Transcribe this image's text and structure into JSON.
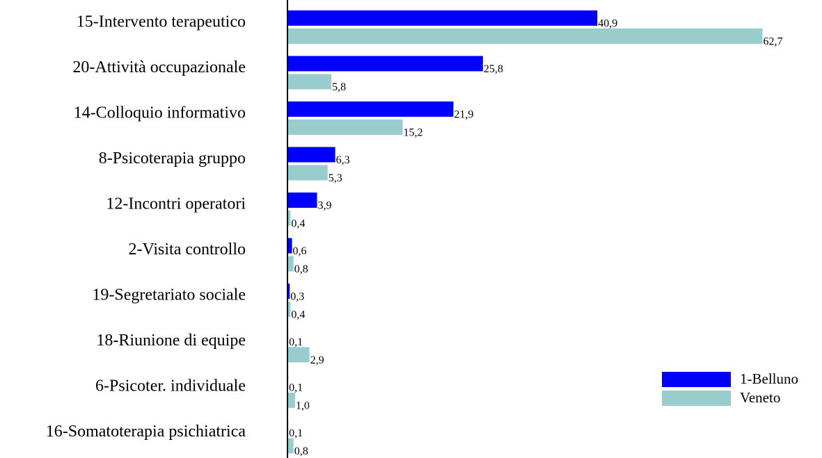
{
  "chart_data": {
    "type": "bar",
    "orientation": "horizontal",
    "categories": [
      "15-Intervento terapeutico",
      "20-Attività occupazionale",
      "14-Colloquio informativo",
      "8-Psicoterapia gruppo",
      "12-Incontri operatori",
      "2-Visita controllo",
      "19-Segretariato sociale",
      "18-Riunione di equipe",
      "6-Psicoter. individuale",
      "16-Somatoterapia psichiatrica"
    ],
    "series": [
      {
        "name": "1-Belluno",
        "color": "#0000ff",
        "values": [
          40.9,
          25.8,
          21.9,
          6.3,
          3.9,
          0.6,
          0.3,
          0.1,
          0.1,
          0.1
        ],
        "value_labels": [
          "40,9",
          "25,8",
          "21,9",
          "6,3",
          "3,9",
          "0,6",
          "0,3",
          "0,1",
          "0,1",
          "0,1"
        ]
      },
      {
        "name": "Veneto",
        "color": "#99cccc",
        "values": [
          62.7,
          5.8,
          15.2,
          5.3,
          0.4,
          0.8,
          0.4,
          2.9,
          1.0,
          0.8
        ],
        "value_labels": [
          "62,7",
          "5,8",
          "15,2",
          "5,3",
          "0,4",
          "0,8",
          "0,4",
          "2,9",
          "1,0",
          "0,8"
        ]
      }
    ],
    "xlim": [
      0,
      70
    ],
    "legend": "lower-right"
  }
}
